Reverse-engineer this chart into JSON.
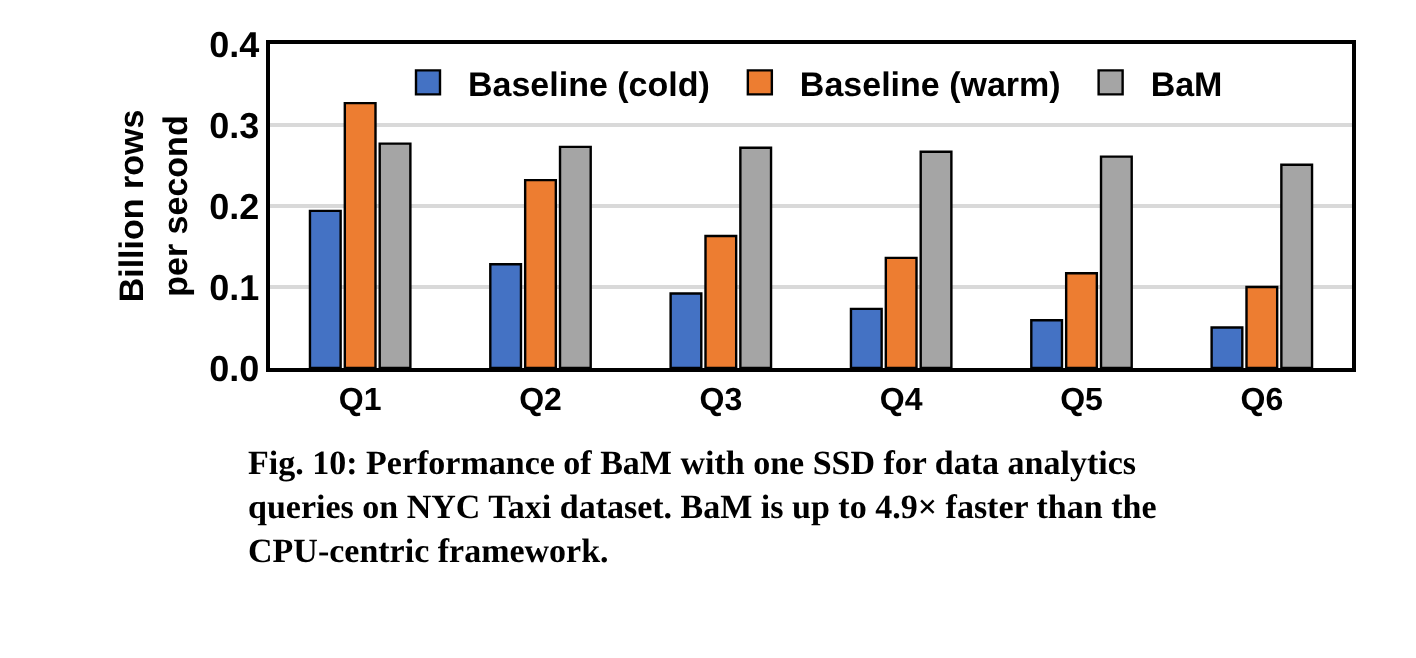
{
  "chart_data": {
    "type": "bar",
    "ylabel": "Billion rows\nper second",
    "categories": [
      "Q1",
      "Q2",
      "Q3",
      "Q4",
      "Q5",
      "Q6"
    ],
    "series": [
      {
        "name": "Baseline (cold)",
        "color": "#4472c4",
        "values": [
          0.194,
          0.128,
          0.092,
          0.073,
          0.059,
          0.05
        ]
      },
      {
        "name": "Baseline (warm)",
        "color": "#ed7d31",
        "values": [
          0.327,
          0.232,
          0.163,
          0.136,
          0.117,
          0.1
        ]
      },
      {
        "name": "BaM",
        "color": "#a5a5a5",
        "values": [
          0.277,
          0.273,
          0.272,
          0.267,
          0.261,
          0.251
        ]
      }
    ],
    "ylim": [
      0,
      0.4
    ],
    "yticks": [
      {
        "value": 0,
        "label": "0.0"
      },
      0.1,
      0.2,
      0.3,
      0.4
    ],
    "grid": "y",
    "legend": "top",
    "annotations": [
      "Fig. 10: Performance of BaM with one SSD for data analytics queries on NYC Taxi dataset. BaM is up to 4.9× faster than the CPU-centric framework."
    ]
  }
}
